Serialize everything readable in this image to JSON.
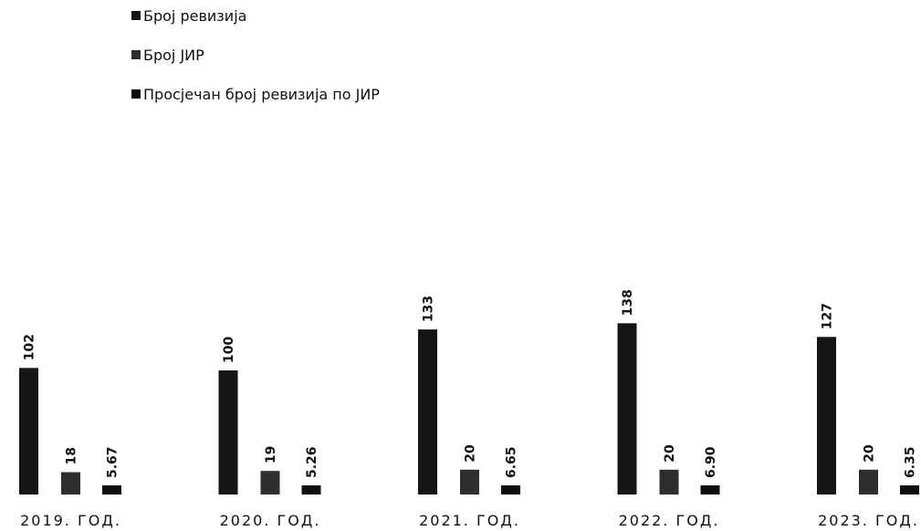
{
  "chart_data": {
    "type": "bar",
    "categories": [
      "2019. ГОД.",
      "2020. ГОД.",
      "2021. ГОД.",
      "2022. ГОД.",
      "2023. ГОД."
    ],
    "series": [
      {
        "name": "Број ревизија",
        "values": [
          102,
          100,
          133,
          138,
          127
        ],
        "labels": [
          "102",
          "100",
          "133",
          "138",
          "127"
        ],
        "color": "#151515"
      },
      {
        "name": "Број ЈИР",
        "values": [
          18,
          19,
          20,
          20,
          20
        ],
        "labels": [
          "18",
          "19",
          "20",
          "20",
          "20"
        ],
        "color": "#2e2e2e"
      },
      {
        "name": "Просјечан број ревизија по ЈИР",
        "values": [
          5.67,
          5.26,
          6.65,
          6.9,
          6.35
        ],
        "labels": [
          "5.67",
          "5.26",
          "6.65",
          "6.90",
          "6.35"
        ],
        "color": "#0d0d0d"
      }
    ],
    "title": "",
    "xlabel": "",
    "ylabel": "",
    "ylim": [
      0,
      160
    ],
    "grid": false,
    "legend": "top-left"
  }
}
